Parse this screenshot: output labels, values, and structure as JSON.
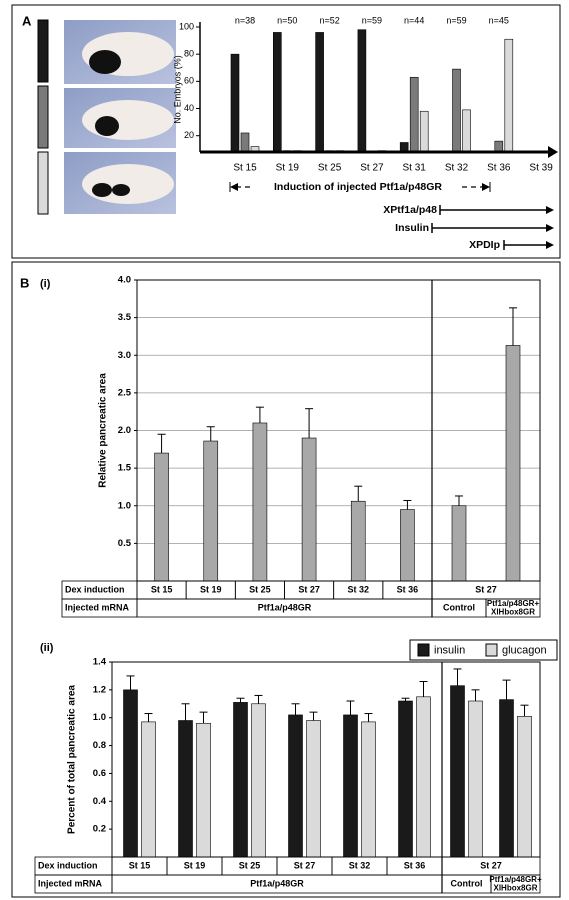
{
  "chart_data": [
    {
      "type": "bar",
      "panel_label": "A",
      "ylabel": "No. Embryos (%)",
      "categories": [
        "St 15",
        "St 19",
        "St 25",
        "St 27",
        "St 31",
        "St 32",
        "St 36",
        "St 39"
      ],
      "n_labels": [
        "n=38",
        "n=50",
        "n=52",
        "n=59",
        "n=44",
        "n=59",
        "n=45",
        null
      ],
      "series": [
        {
          "color": "#1a1a1a",
          "values": [
            80,
            96,
            96,
            98,
            15,
            null,
            null,
            null
          ]
        },
        {
          "color": "#7a7a7a",
          "values": [
            22,
            9,
            9,
            null,
            63,
            69,
            16,
            null
          ]
        },
        {
          "color": "#dadada",
          "values": [
            12,
            9,
            9,
            9,
            38,
            39,
            91,
            null
          ]
        }
      ],
      "ylim": [
        8,
        100
      ],
      "yticks": [
        20,
        40,
        60,
        80,
        100
      ],
      "annotations": [
        "Induction of injected Ptf1a/p48GR",
        "XPtf1a/p48",
        "Insulin",
        "XPDIp"
      ]
    },
    {
      "type": "bar",
      "panel_label": "B",
      "subpanel_label": "(i)",
      "ylabel": "Relative pancreatic area",
      "color": "#a8a8a8",
      "values": [
        1.7,
        1.86,
        2.1,
        1.9,
        1.06,
        0.95,
        1.0,
        3.13
      ],
      "errors": [
        0.25,
        0.19,
        0.21,
        0.39,
        0.2,
        0.12,
        0.13,
        0.5
      ],
      "ylim": [
        0,
        4
      ],
      "yticks": [
        {
          "value": 0.5,
          "label": "0.5"
        },
        {
          "value": 1,
          "label": "1.0"
        },
        1.5,
        {
          "value": 2,
          "label": "2.0"
        },
        2.5,
        {
          "value": 3,
          "label": "3.0"
        },
        3.5,
        {
          "value": 4,
          "label": "4.0"
        }
      ],
      "grid": true,
      "table": {
        "rows": [
          [
            "Dex induction",
            "St 15",
            "St 19",
            "St 25",
            "St 27",
            "St 32",
            "St 36",
            "St 27"
          ],
          [
            "Injected mRNA",
            "Ptf1a/p48GR",
            "Control",
            [
              "Ptf1a/p48GR+",
              "XlHbox8GR"
            ]
          ]
        ]
      }
    },
    {
      "type": "bar",
      "subpanel_label": "(ii)",
      "ylabel": "Percent of total pancreatic area",
      "series": [
        {
          "name": "insulin",
          "color": "#1a1a1a",
          "values": [
            1.2,
            0.98,
            1.11,
            1.02,
            1.02,
            1.12,
            1.23,
            1.13
          ],
          "errors": [
            0.1,
            0.12,
            0.03,
            0.08,
            0.1,
            0.02,
            0.12,
            0.14
          ]
        },
        {
          "name": "glucagon",
          "color": "#dadada",
          "values": [
            0.97,
            0.96,
            1.1,
            0.98,
            0.97,
            1.15,
            1.12,
            1.01
          ],
          "errors": [
            0.06,
            0.08,
            0.06,
            0.06,
            0.06,
            0.11,
            0.08,
            0.08
          ]
        }
      ],
      "ylim": [
        0,
        1.4
      ],
      "yticks": [
        0.2,
        0.4,
        0.6,
        0.8,
        {
          "value": 1,
          "label": "1.0"
        },
        1.2,
        1.4
      ],
      "grid": false,
      "legend": "top-right",
      "table": {
        "rows": [
          [
            "Dex induction",
            "St 15",
            "St 19",
            "St 25",
            "St 27",
            "St 32",
            "St 36",
            "St 27"
          ],
          [
            "Injected mRNA",
            "Ptf1a/p48GR",
            "Control",
            [
              "Ptf1a/p48GR+",
              "XlHbox8GR"
            ]
          ]
        ]
      }
    }
  ]
}
